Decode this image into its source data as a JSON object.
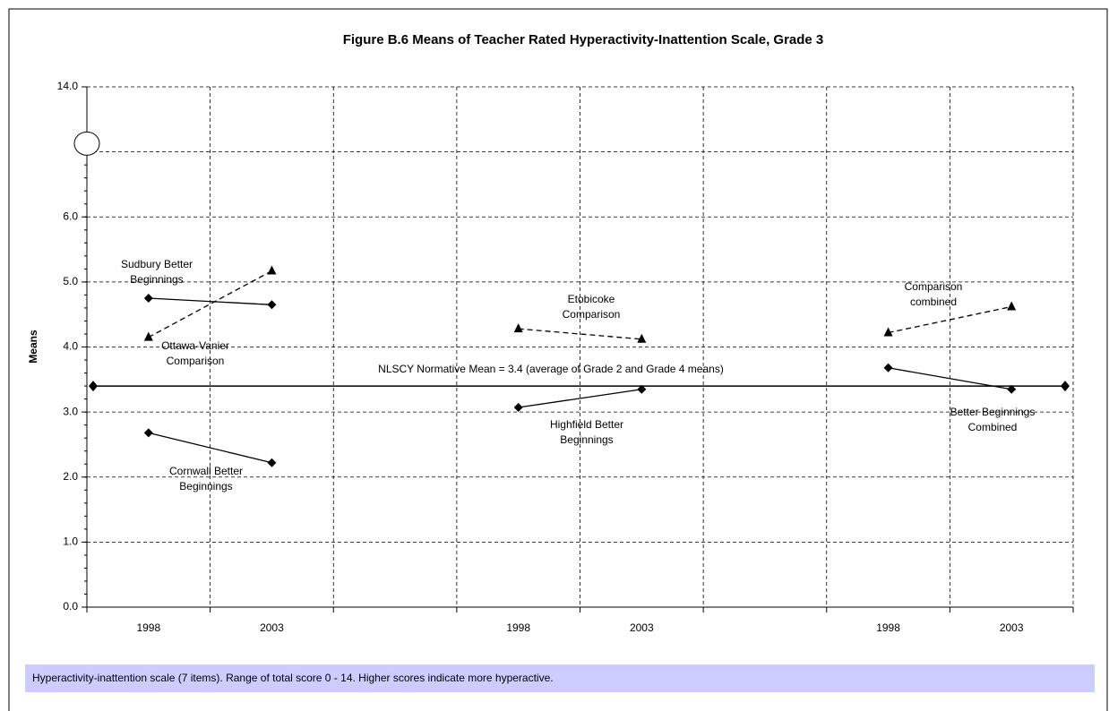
{
  "chart_data": {
    "type": "line",
    "title": "Figure B.6  Means of Teacher Rated Hyperactivity-Inattention Scale, Grade 3",
    "y_label": "Means",
    "categories": [
      "1998",
      "2003",
      null,
      "1998",
      "2003",
      null,
      "1998",
      "2003"
    ],
    "ylim": [
      0,
      14
    ],
    "y_break": 7,
    "yticks": [
      {
        "value": 0,
        "label": "0.0"
      },
      {
        "value": 1,
        "label": "1.0"
      },
      {
        "value": 2,
        "label": "2.0"
      },
      {
        "value": 3,
        "label": "3.0"
      },
      {
        "value": 4,
        "label": "4.0"
      },
      {
        "value": 5,
        "label": "5.0"
      },
      {
        "value": 6,
        "label": "6.0"
      },
      {
        "value": 14,
        "label": "14.0"
      }
    ],
    "grid": true,
    "series": [
      {
        "name": "Sudbury Better Beginnings",
        "color": "#000000",
        "marker": "diamond",
        "line_style": "solid",
        "values": [
          4.75,
          4.65,
          null,
          null,
          null,
          null,
          null,
          null
        ]
      },
      {
        "name": "Ottawa-Vanier Comparison",
        "color": "#000000",
        "marker": "triangle",
        "line_style": "dashed",
        "values": [
          4.15,
          5.17,
          null,
          null,
          null,
          null,
          null,
          null
        ]
      },
      {
        "name": "Cornwall Better Beginnings",
        "color": "#000000",
        "marker": "diamond",
        "line_style": "solid",
        "values": [
          2.68,
          2.22,
          null,
          null,
          null,
          null,
          null,
          null
        ]
      },
      {
        "name": "Etobicoke Comparison",
        "color": "#000000",
        "marker": "triangle",
        "line_style": "dashed",
        "values": [
          null,
          null,
          null,
          4.28,
          4.12,
          null,
          null,
          null
        ]
      },
      {
        "name": "Highfield Better Beginnings",
        "color": "#000000",
        "marker": "diamond",
        "line_style": "solid",
        "values": [
          null,
          null,
          null,
          3.07,
          3.35,
          null,
          null,
          null
        ]
      },
      {
        "name": "Comparison combined",
        "color": "#000000",
        "marker": "triangle",
        "line_style": "dashed",
        "values": [
          null,
          null,
          null,
          null,
          null,
          null,
          4.22,
          4.62
        ]
      },
      {
        "name": "Better Beginnings Combined",
        "color": "#000000",
        "marker": "diamond",
        "line_style": "solid",
        "values": [
          null,
          null,
          null,
          null,
          null,
          null,
          3.68,
          3.35
        ]
      }
    ],
    "reference_line": {
      "value": 3.4,
      "label": "NLSCY Normative Mean = 3.4 (average of Grade 2 and Grade 4 means)"
    },
    "footnote": "Hyperactivity-inattention scale (7 items). Range of total score 0 - 14. Higher scores indicate more hyperactive."
  }
}
